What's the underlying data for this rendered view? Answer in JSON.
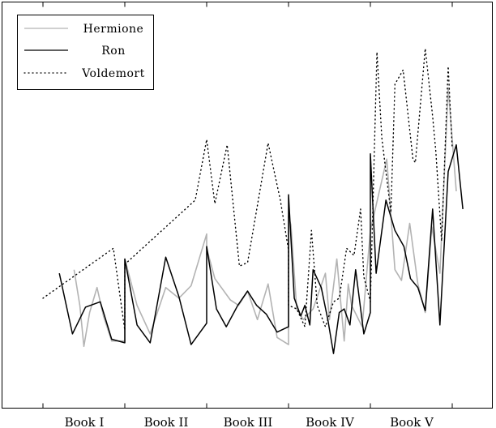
{
  "chart_data": {
    "type": "line",
    "title": "",
    "xlabel": "",
    "ylabel": "",
    "grid": false,
    "legend_position": "top-left",
    "x_categories": [
      "Book I",
      "Book II",
      "Book III",
      "Book IV",
      "Book V"
    ],
    "x_boundaries": [
      0,
      1,
      2,
      3,
      4,
      5
    ],
    "ylim": [
      0,
      100
    ],
    "series": [
      {
        "name": "Hermione",
        "color": "#b3b3b3",
        "style": "solid",
        "points": [
          [
            0.38,
            32.0
          ],
          [
            0.45,
            22.0
          ],
          [
            0.5,
            10.5
          ],
          [
            0.57,
            20.0
          ],
          [
            0.66,
            27.0
          ],
          [
            0.74,
            19.0
          ],
          [
            0.84,
            12.0
          ],
          [
            1.0,
            12.0
          ],
          [
            1.0,
            35.0
          ],
          [
            1.15,
            22.0
          ],
          [
            1.31,
            14.0
          ],
          [
            1.5,
            27.0
          ],
          [
            1.66,
            24.0
          ],
          [
            1.81,
            27.5
          ],
          [
            2.0,
            42.0
          ],
          [
            2.0,
            38.0
          ],
          [
            2.1,
            29.5
          ],
          [
            2.29,
            23.5
          ],
          [
            2.39,
            22.0
          ],
          [
            2.5,
            26.0
          ],
          [
            2.62,
            18.0
          ],
          [
            2.75,
            28.0
          ],
          [
            2.86,
            13.0
          ],
          [
            3.0,
            11.0
          ],
          [
            3.0,
            47.0
          ],
          [
            3.03,
            44.5
          ],
          [
            3.1,
            21.0
          ],
          [
            3.18,
            18.0
          ],
          [
            3.3,
            21.0
          ],
          [
            3.45,
            31.0
          ],
          [
            3.5,
            18.0
          ],
          [
            3.59,
            35.0
          ],
          [
            3.68,
            12.0
          ],
          [
            3.73,
            28.0
          ],
          [
            3.77,
            22.0
          ],
          [
            3.9,
            16.0
          ],
          [
            4.0,
            43.0
          ],
          [
            4.05,
            48.0
          ],
          [
            4.2,
            63.0
          ],
          [
            4.3,
            32.0
          ],
          [
            4.38,
            29.0
          ],
          [
            4.48,
            45.0
          ],
          [
            4.58,
            28.0
          ],
          [
            4.67,
            20.0
          ],
          [
            4.75,
            44.0
          ],
          [
            4.85,
            31.0
          ],
          [
            4.95,
            83.0
          ],
          [
            5.05,
            54.0
          ]
        ]
      },
      {
        "name": "Ron",
        "color": "#000000",
        "style": "solid",
        "points": [
          [
            0.2,
            31.0
          ],
          [
            0.36,
            14.0
          ],
          [
            0.52,
            21.5
          ],
          [
            0.7,
            23.0
          ],
          [
            0.84,
            12.5
          ],
          [
            1.0,
            11.5
          ],
          [
            1.0,
            35.0
          ],
          [
            1.15,
            16.5
          ],
          [
            1.31,
            11.5
          ],
          [
            1.5,
            35.5
          ],
          [
            1.66,
            24.5
          ],
          [
            1.81,
            11.0
          ],
          [
            2.0,
            17.0
          ],
          [
            2.0,
            38.5
          ],
          [
            2.12,
            21.0
          ],
          [
            2.24,
            16.0
          ],
          [
            2.38,
            22.0
          ],
          [
            2.5,
            26.0
          ],
          [
            2.61,
            22.0
          ],
          [
            2.73,
            19.5
          ],
          [
            2.86,
            14.5
          ],
          [
            3.0,
            16.0
          ],
          [
            3.0,
            53.0
          ],
          [
            3.07,
            24.0
          ],
          [
            3.15,
            19.0
          ],
          [
            3.2,
            22.0
          ],
          [
            3.26,
            16.5
          ],
          [
            3.3,
            32.0
          ],
          [
            3.4,
            27.0
          ],
          [
            3.48,
            18.0
          ],
          [
            3.55,
            8.5
          ],
          [
            3.62,
            20.0
          ],
          [
            3.68,
            21.0
          ],
          [
            3.75,
            16.5
          ],
          [
            3.82,
            32.0
          ],
          [
            3.92,
            14.0
          ],
          [
            4.0,
            20.0
          ],
          [
            4.0,
            64.5
          ],
          [
            4.07,
            31.0
          ],
          [
            4.19,
            51.5
          ],
          [
            4.3,
            43.0
          ],
          [
            4.41,
            38.5
          ],
          [
            4.49,
            29.5
          ],
          [
            4.58,
            27.0
          ],
          [
            4.67,
            20.5
          ],
          [
            4.76,
            49.0
          ],
          [
            4.85,
            16.5
          ],
          [
            4.95,
            59.5
          ],
          [
            5.05,
            67.0
          ],
          [
            5.13,
            49.0
          ]
        ]
      },
      {
        "name": "Voldemort",
        "color": "#000000",
        "style": "dotted",
        "points": [
          [
            0.0,
            24.0
          ],
          [
            0.86,
            38.0
          ],
          [
            1.0,
            15.0
          ],
          [
            1.0,
            33.5
          ],
          [
            1.86,
            51.5
          ],
          [
            2.0,
            68.5
          ],
          [
            2.1,
            50.5
          ],
          [
            2.25,
            67.0
          ],
          [
            2.4,
            33.0
          ],
          [
            2.5,
            34.0
          ],
          [
            2.75,
            67.5
          ],
          [
            2.9,
            51.5
          ],
          [
            3.0,
            37.5
          ],
          [
            3.0,
            22.0
          ],
          [
            3.1,
            21.0
          ],
          [
            3.2,
            16.0
          ],
          [
            3.28,
            43.0
          ],
          [
            3.35,
            22.0
          ],
          [
            3.45,
            16.0
          ],
          [
            3.55,
            23.0
          ],
          [
            3.62,
            24.0
          ],
          [
            3.71,
            38.0
          ],
          [
            3.8,
            36.0
          ],
          [
            3.88,
            49.0
          ],
          [
            3.92,
            30.0
          ],
          [
            4.0,
            23.0
          ],
          [
            4.08,
            93.0
          ],
          [
            4.14,
            69.0
          ],
          [
            4.25,
            48.0
          ],
          [
            4.3,
            84.0
          ],
          [
            4.4,
            88.0
          ],
          [
            4.52,
            63.0
          ],
          [
            4.55,
            62.0
          ],
          [
            4.67,
            94.0
          ],
          [
            4.76,
            75.0
          ],
          [
            4.8,
            65.0
          ],
          [
            4.87,
            40.0
          ],
          [
            4.95,
            89.0
          ],
          [
            5.0,
            66.0
          ]
        ]
      }
    ]
  }
}
